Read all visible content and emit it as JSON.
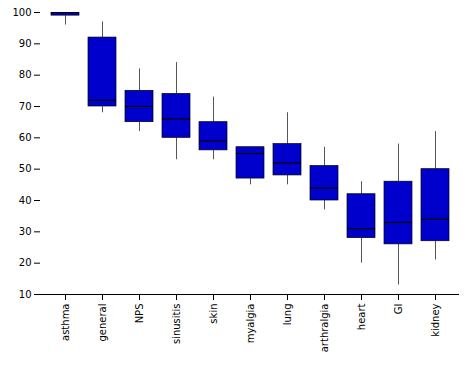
{
  "chart_data": {
    "type": "box",
    "categories": [
      "asthma",
      "general",
      "NPS",
      "sinusitis",
      "skin",
      "myalgia",
      "lung",
      "arthralgia",
      "heart",
      "GI",
      "kidney"
    ],
    "box_stats": [
      {
        "whislo": 96,
        "q1": 99,
        "med": 100,
        "q3": 100,
        "whishi": 100
      },
      {
        "whislo": 68,
        "q1": 70,
        "med": 72,
        "q3": 92,
        "whishi": 97
      },
      {
        "whislo": 62,
        "q1": 65,
        "med": 70,
        "q3": 75,
        "whishi": 82
      },
      {
        "whislo": 53,
        "q1": 60,
        "med": 66,
        "q3": 74,
        "whishi": 84
      },
      {
        "whislo": 53,
        "q1": 56,
        "med": 59,
        "q3": 65,
        "whishi": 73
      },
      {
        "whislo": 45,
        "q1": 47,
        "med": 55,
        "q3": 57,
        "whishi": 57
      },
      {
        "whislo": 45,
        "q1": 48,
        "med": 52,
        "q3": 58,
        "whishi": 68
      },
      {
        "whislo": 37,
        "q1": 40,
        "med": 44,
        "q3": 51,
        "whishi": 57
      },
      {
        "whislo": 20,
        "q1": 28,
        "med": 31,
        "q3": 42,
        "whishi": 46
      },
      {
        "whislo": 13,
        "q1": 26,
        "med": 33,
        "q3": 46,
        "whishi": 58
      },
      {
        "whislo": 21,
        "q1": 27,
        "med": 34,
        "q3": 50,
        "whishi": 62
      }
    ],
    "color": "#0000CC",
    "ylim": [
      10,
      100
    ],
    "yticks": [
      10,
      20,
      30,
      40,
      50,
      60,
      70,
      80,
      90,
      100
    ]
  }
}
